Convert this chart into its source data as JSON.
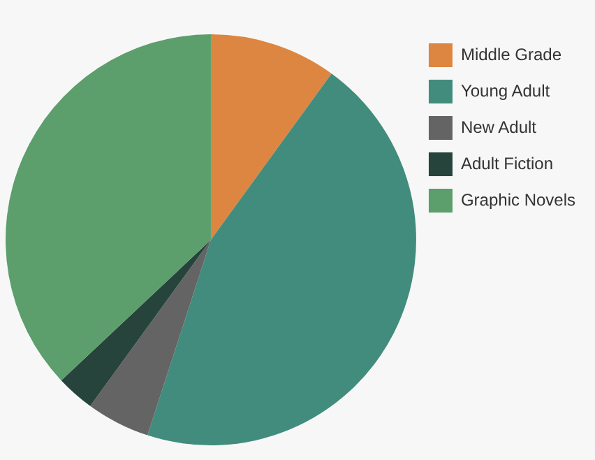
{
  "chart_data": {
    "type": "pie",
    "categories": [
      "Middle Grade",
      "Young Adult",
      "New Adult",
      "Adult Fiction",
      "Graphic Novels"
    ],
    "values": [
      10,
      45,
      5,
      3,
      37
    ],
    "colors": [
      "#dd8641",
      "#418c7d",
      "#646464",
      "#26443b",
      "#5c9e6c"
    ],
    "legend": "top right"
  }
}
